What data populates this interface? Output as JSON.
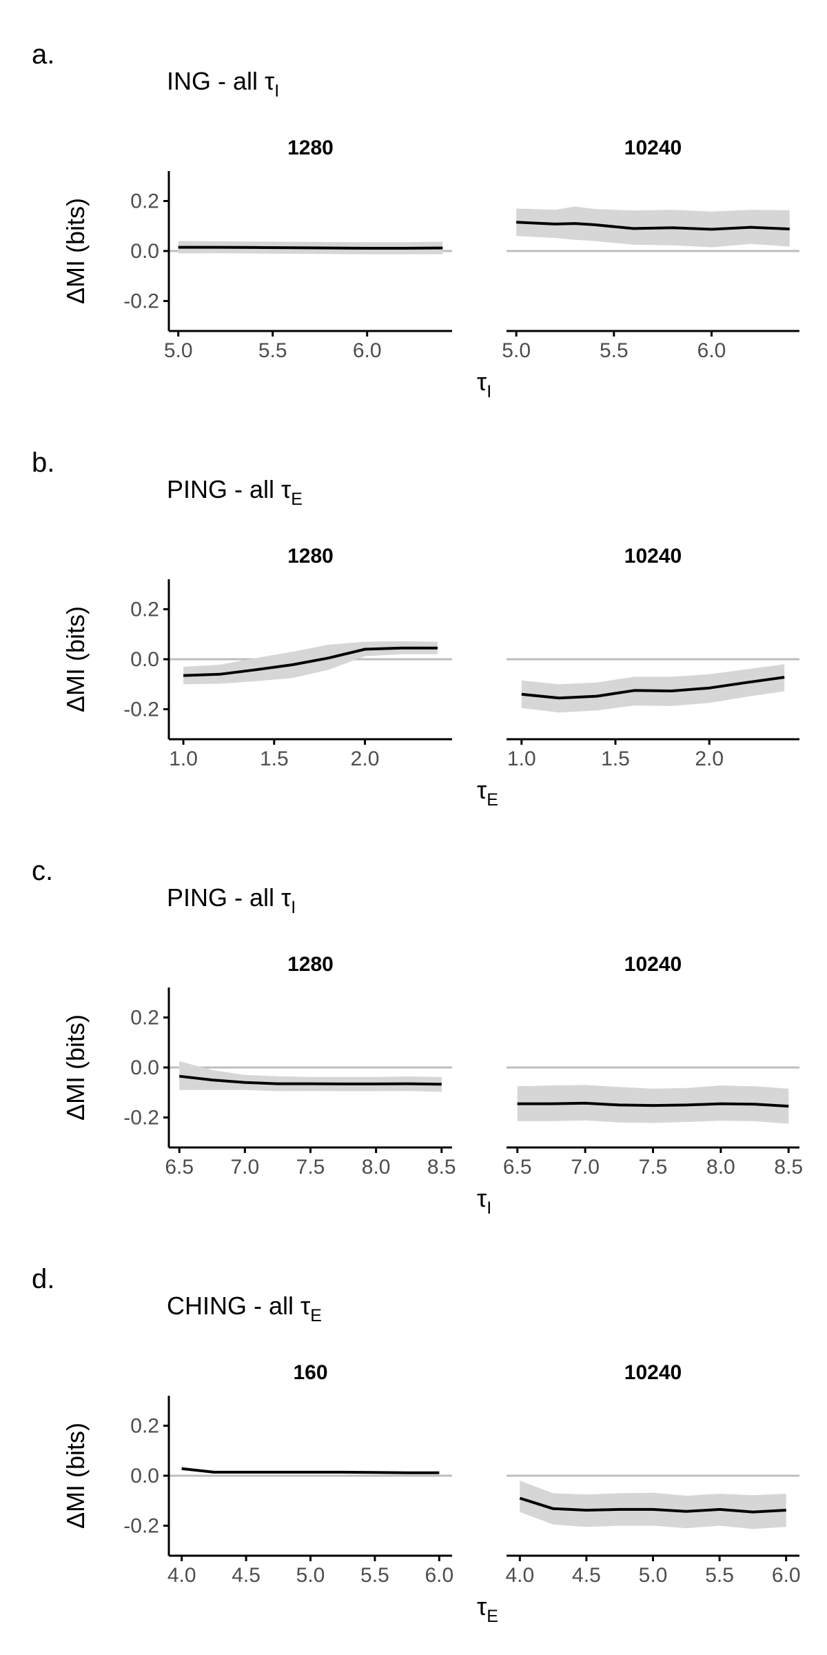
{
  "chart_data": [
    {
      "type": "line",
      "panel_label": "a.",
      "title": "ING - all τ",
      "title_sub": "I",
      "ylabel": "ΔMI (bits)",
      "xlabel": "τ",
      "xlabel_sub": "I",
      "ylim": [
        -0.32,
        0.32
      ],
      "yticks": [
        0.2,
        0.0,
        -0.2
      ],
      "ytick_labels": [
        "0.2",
        "0.0",
        "-0.2"
      ],
      "reference_line": 0,
      "facets": [
        {
          "strip": "1280",
          "xlim": [
            4.95,
            6.45
          ],
          "xticks": [
            5.0,
            5.5,
            6.0
          ],
          "xtick_labels": [
            "5.0",
            "5.5",
            "6.0"
          ],
          "x": [
            5.0,
            5.2,
            5.4,
            5.6,
            5.8,
            6.0,
            6.2,
            6.4
          ],
          "y": [
            0.015,
            0.015,
            0.014,
            0.013,
            0.012,
            0.011,
            0.011,
            0.012
          ],
          "band_upper": [
            0.04,
            0.039,
            0.038,
            0.037,
            0.036,
            0.035,
            0.035,
            0.037
          ],
          "band_lower": [
            -0.01,
            -0.009,
            -0.01,
            -0.011,
            -0.012,
            -0.013,
            -0.013,
            -0.013
          ]
        },
        {
          "strip": "10240",
          "xlim": [
            4.95,
            6.45
          ],
          "xticks": [
            5.0,
            5.5,
            6.0
          ],
          "xtick_labels": [
            "5.0",
            "5.5",
            "6.0"
          ],
          "x": [
            5.0,
            5.2,
            5.3,
            5.4,
            5.6,
            5.8,
            6.0,
            6.2,
            6.4
          ],
          "y": [
            0.115,
            0.108,
            0.11,
            0.105,
            0.09,
            0.093,
            0.087,
            0.095,
            0.088
          ],
          "band_upper": [
            0.17,
            0.165,
            0.178,
            0.168,
            0.162,
            0.165,
            0.158,
            0.165,
            0.163
          ],
          "band_lower": [
            0.06,
            0.052,
            0.045,
            0.04,
            0.025,
            0.023,
            0.015,
            0.028,
            0.018
          ]
        }
      ]
    },
    {
      "type": "line",
      "panel_label": "b.",
      "title": "PING - all τ",
      "title_sub": "E",
      "ylabel": "ΔMI (bits)",
      "xlabel": "τ",
      "xlabel_sub": "E",
      "ylim": [
        -0.32,
        0.32
      ],
      "yticks": [
        0.2,
        0.0,
        -0.2
      ],
      "ytick_labels": [
        "0.2",
        "0.0",
        "-0.2"
      ],
      "reference_line": 0,
      "facets": [
        {
          "strip": "1280",
          "xlim": [
            0.92,
            2.48
          ],
          "xticks": [
            1.0,
            1.5,
            2.0
          ],
          "xtick_labels": [
            "1.0",
            "1.5",
            "2.0"
          ],
          "x": [
            1.0,
            1.2,
            1.4,
            1.6,
            1.8,
            2.0,
            2.2,
            2.4
          ],
          "y": [
            -0.065,
            -0.06,
            -0.042,
            -0.022,
            0.005,
            0.04,
            0.045,
            0.045
          ],
          "band_upper": [
            -0.03,
            -0.022,
            0.005,
            0.03,
            0.058,
            0.07,
            0.072,
            0.07
          ],
          "band_lower": [
            -0.1,
            -0.098,
            -0.088,
            -0.075,
            -0.042,
            0.012,
            0.02,
            0.02
          ]
        },
        {
          "strip": "10240",
          "xlim": [
            0.92,
            2.48
          ],
          "xticks": [
            1.0,
            1.5,
            2.0
          ],
          "xtick_labels": [
            "1.0",
            "1.5",
            "2.0"
          ],
          "x": [
            1.0,
            1.2,
            1.4,
            1.6,
            1.8,
            2.0,
            2.2,
            2.4
          ],
          "y": [
            -0.14,
            -0.155,
            -0.148,
            -0.125,
            -0.127,
            -0.115,
            -0.093,
            -0.072
          ],
          "band_upper": [
            -0.085,
            -0.1,
            -0.093,
            -0.07,
            -0.07,
            -0.06,
            -0.04,
            -0.02
          ],
          "band_lower": [
            -0.195,
            -0.213,
            -0.205,
            -0.185,
            -0.187,
            -0.175,
            -0.15,
            -0.128
          ]
        }
      ]
    },
    {
      "type": "line",
      "panel_label": "c.",
      "title": "PING - all τ",
      "title_sub": "I",
      "ylabel": "ΔMI (bits)",
      "xlabel": "τ",
      "xlabel_sub": "I",
      "ylim": [
        -0.32,
        0.32
      ],
      "yticks": [
        0.2,
        0.0,
        -0.2
      ],
      "ytick_labels": [
        "0.2",
        "0.0",
        "-0.2"
      ],
      "reference_line": 0,
      "facets": [
        {
          "strip": "1280",
          "xlim": [
            6.42,
            8.58
          ],
          "xticks": [
            6.5,
            7.0,
            7.5,
            8.0,
            8.5
          ],
          "xtick_labels": [
            "6.5",
            "7.0",
            "7.5",
            "8.0",
            "8.5"
          ],
          "x": [
            6.5,
            6.75,
            7.0,
            7.25,
            7.5,
            7.75,
            8.0,
            8.25,
            8.5
          ],
          "y": [
            -0.035,
            -0.05,
            -0.06,
            -0.065,
            -0.065,
            -0.066,
            -0.066,
            -0.065,
            -0.067
          ],
          "band_upper": [
            0.025,
            -0.01,
            -0.03,
            -0.035,
            -0.038,
            -0.038,
            -0.038,
            -0.036,
            -0.038
          ],
          "band_lower": [
            -0.09,
            -0.09,
            -0.09,
            -0.095,
            -0.094,
            -0.095,
            -0.095,
            -0.094,
            -0.097
          ]
        },
        {
          "strip": "10240",
          "xlim": [
            6.42,
            8.58
          ],
          "xticks": [
            6.5,
            7.0,
            7.5,
            8.0,
            8.5
          ],
          "xtick_labels": [
            "6.5",
            "7.0",
            "7.5",
            "8.0",
            "8.5"
          ],
          "x": [
            6.5,
            6.75,
            7.0,
            7.25,
            7.5,
            7.75,
            8.0,
            8.25,
            8.5
          ],
          "y": [
            -0.145,
            -0.145,
            -0.143,
            -0.15,
            -0.152,
            -0.15,
            -0.145,
            -0.147,
            -0.155
          ],
          "band_upper": [
            -0.075,
            -0.072,
            -0.07,
            -0.078,
            -0.085,
            -0.082,
            -0.072,
            -0.075,
            -0.085
          ],
          "band_lower": [
            -0.215,
            -0.215,
            -0.212,
            -0.22,
            -0.222,
            -0.218,
            -0.213,
            -0.215,
            -0.225
          ]
        }
      ]
    },
    {
      "type": "line",
      "panel_label": "d.",
      "title": "CHING - all τ",
      "title_sub": "E",
      "ylabel": "ΔMI (bits)",
      "xlabel": "τ",
      "xlabel_sub": "E",
      "ylim": [
        -0.32,
        0.32
      ],
      "yticks": [
        0.2,
        0.0,
        -0.2
      ],
      "ytick_labels": [
        "0.2",
        "0.0",
        "-0.2"
      ],
      "reference_line": 0,
      "facets": [
        {
          "strip": "160",
          "xlim": [
            3.9,
            6.1
          ],
          "xticks": [
            4.0,
            4.5,
            5.0,
            5.5,
            6.0
          ],
          "xtick_labels": [
            "4.0",
            "4.5",
            "5.0",
            "5.5",
            "6.0"
          ],
          "x": [
            4.0,
            4.25,
            4.5,
            4.75,
            5.0,
            5.25,
            5.5,
            5.75,
            6.0
          ],
          "y": [
            0.028,
            0.014,
            0.014,
            0.014,
            0.014,
            0.014,
            0.013,
            0.012,
            0.012
          ],
          "band_upper": [
            0.034,
            0.019,
            0.018,
            0.018,
            0.018,
            0.018,
            0.017,
            0.016,
            0.016
          ],
          "band_lower": [
            0.022,
            0.01,
            0.01,
            0.01,
            0.01,
            0.01,
            0.009,
            0.008,
            0.008
          ]
        },
        {
          "strip": "10240",
          "xlim": [
            3.9,
            6.1
          ],
          "xticks": [
            4.0,
            4.5,
            5.0,
            5.5,
            6.0
          ],
          "xtick_labels": [
            "4.0",
            "4.5",
            "5.0",
            "5.5",
            "6.0"
          ],
          "x": [
            4.0,
            4.25,
            4.5,
            4.75,
            5.0,
            5.25,
            5.5,
            5.75,
            6.0
          ],
          "y": [
            -0.09,
            -0.132,
            -0.138,
            -0.135,
            -0.135,
            -0.143,
            -0.135,
            -0.145,
            -0.138
          ],
          "band_upper": [
            -0.02,
            -0.07,
            -0.075,
            -0.07,
            -0.068,
            -0.08,
            -0.072,
            -0.078,
            -0.072
          ],
          "band_lower": [
            -0.145,
            -0.195,
            -0.205,
            -0.2,
            -0.2,
            -0.21,
            -0.2,
            -0.213,
            -0.205
          ]
        }
      ]
    }
  ]
}
